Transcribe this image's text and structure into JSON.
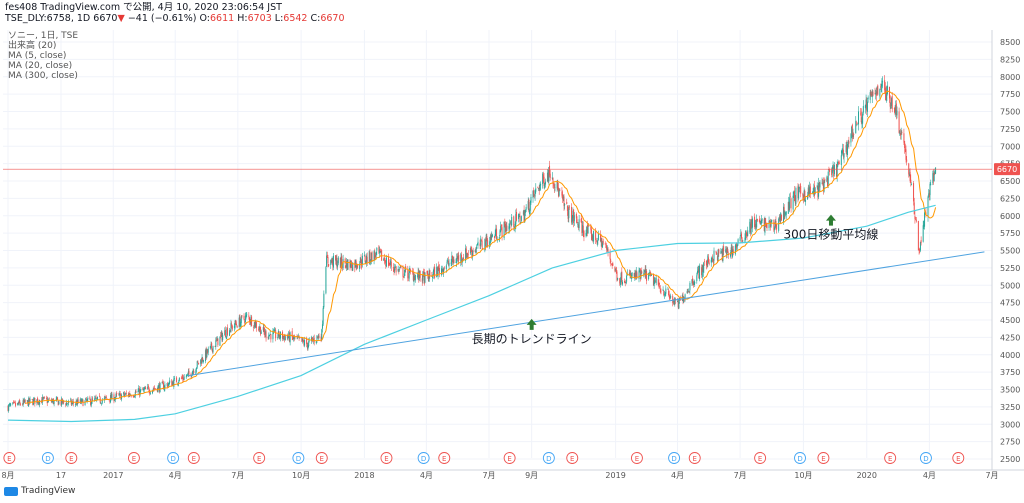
{
  "header": {
    "publish_line": "fes408 TradingView.com で公開, 4月 10, 2020 23:06:54 JST",
    "symbol": "TSE_DLY:6758, 1D",
    "last": "6670",
    "change": "−41 (−0.61%)",
    "o_label": "O:",
    "o": "6611",
    "h_label": "H:",
    "h": "6703",
    "l_label": "L:",
    "l": "6542",
    "c_label": "C:",
    "c": "6670"
  },
  "indicators": {
    "series_name": "ソニー, 1日, TSE",
    "volume": "出来高 (20)",
    "ma5": "MA (5, close)",
    "ma20": "MA (20, close)",
    "ma300": "MA (300, close)"
  },
  "logo": {
    "text": "TradingView"
  },
  "colors": {
    "up": "#26a69a",
    "down": "#ef5350",
    "ma20": "#ff9800",
    "ma300": "#4dd0e1",
    "trend": "#4fa3e0",
    "price_line": "#ef5350",
    "arrow": "#2e7d32",
    "earnings": "#ef5350",
    "dividend": "#42a5f5"
  },
  "chart_data": {
    "type": "line",
    "title": "",
    "y_ticks": [
      "8500",
      "8250",
      "8000",
      "7750",
      "7500",
      "7250",
      "7000",
      "6750",
      "6500",
      "6250",
      "6000",
      "5750",
      "5500",
      "5250",
      "5000",
      "4750",
      "4500",
      "4250",
      "4000",
      "3750",
      "3500",
      "3250",
      "3000",
      "2750",
      "2500"
    ],
    "ylim": [
      2500,
      8500
    ],
    "x_ticks": [
      "8月",
      "17",
      "2017",
      "4月",
      "7月",
      "10月",
      "2018",
      "4月",
      "7月",
      "9月",
      "2019",
      "4月",
      "7月",
      "10月",
      "2020",
      "4月",
      "7月"
    ],
    "grid": true,
    "current_price": "6670",
    "price_series": [
      {
        "date": "2016-08-01",
        "close": 3250
      },
      {
        "date": "2016-09-15",
        "close": 3350
      },
      {
        "date": "2016-11-01",
        "close": 3300
      },
      {
        "date": "2016-12-15",
        "close": 3350
      },
      {
        "date": "2017-02-01",
        "close": 3450
      },
      {
        "date": "2017-03-15",
        "close": 3550
      },
      {
        "date": "2017-04-20",
        "close": 3700
      },
      {
        "date": "2017-05-15",
        "close": 4000
      },
      {
        "date": "2017-06-15",
        "close": 4350
      },
      {
        "date": "2017-07-15",
        "close": 4550
      },
      {
        "date": "2017-08-10",
        "close": 4300
      },
      {
        "date": "2017-09-15",
        "close": 4250
      },
      {
        "date": "2017-10-10",
        "close": 4150
      },
      {
        "date": "2017-10-31",
        "close": 4300
      },
      {
        "date": "2017-11-05",
        "close": 5350
      },
      {
        "date": "2017-12-15",
        "close": 5300
      },
      {
        "date": "2018-01-20",
        "close": 5450
      },
      {
        "date": "2018-02-20",
        "close": 5200
      },
      {
        "date": "2018-04-01",
        "close": 5100
      },
      {
        "date": "2018-05-01",
        "close": 5300
      },
      {
        "date": "2018-06-15",
        "close": 5550
      },
      {
        "date": "2018-07-20",
        "close": 5800
      },
      {
        "date": "2018-08-20",
        "close": 6000
      },
      {
        "date": "2018-09-10",
        "close": 6400
      },
      {
        "date": "2018-09-28",
        "close": 6650
      },
      {
        "date": "2018-10-20",
        "close": 6100
      },
      {
        "date": "2018-11-15",
        "close": 5800
      },
      {
        "date": "2018-12-15",
        "close": 5600
      },
      {
        "date": "2019-01-05",
        "close": 5100
      },
      {
        "date": "2019-02-15",
        "close": 5150
      },
      {
        "date": "2019-03-15",
        "close": 4900
      },
      {
        "date": "2019-04-01",
        "close": 4700
      },
      {
        "date": "2019-04-25",
        "close": 5100
      },
      {
        "date": "2019-05-20",
        "close": 5400
      },
      {
        "date": "2019-06-20",
        "close": 5500
      },
      {
        "date": "2019-07-20",
        "close": 5900
      },
      {
        "date": "2019-08-20",
        "close": 5850
      },
      {
        "date": "2019-09-20",
        "close": 6300
      },
      {
        "date": "2019-10-20",
        "close": 6350
      },
      {
        "date": "2019-11-20",
        "close": 6700
      },
      {
        "date": "2019-12-15",
        "close": 7300
      },
      {
        "date": "2020-01-20",
        "close": 7900
      },
      {
        "date": "2020-02-10",
        "close": 7600
      },
      {
        "date": "2020-02-25",
        "close": 7000
      },
      {
        "date": "2020-03-10",
        "close": 6100
      },
      {
        "date": "2020-03-17",
        "close": 5500
      },
      {
        "date": "2020-03-31",
        "close": 6300
      },
      {
        "date": "2020-04-10",
        "close": 6670
      }
    ],
    "series": [
      {
        "name": "MA (20, close)",
        "ref": "ma20"
      },
      {
        "name": "MA (300, close)",
        "values": [
          {
            "date": "2016-08-01",
            "value": 3060
          },
          {
            "date": "2016-11-01",
            "value": 3040
          },
          {
            "date": "2017-02-01",
            "value": 3070
          },
          {
            "date": "2017-04-01",
            "value": 3150
          },
          {
            "date": "2017-07-01",
            "value": 3400
          },
          {
            "date": "2017-10-01",
            "value": 3700
          },
          {
            "date": "2018-01-01",
            "value": 4150
          },
          {
            "date": "2018-04-01",
            "value": 4500
          },
          {
            "date": "2018-07-01",
            "value": 4850
          },
          {
            "date": "2018-10-01",
            "value": 5250
          },
          {
            "date": "2019-01-01",
            "value": 5500
          },
          {
            "date": "2019-04-01",
            "value": 5600
          },
          {
            "date": "2019-07-01",
            "value": 5610
          },
          {
            "date": "2019-10-01",
            "value": 5680
          },
          {
            "date": "2020-01-01",
            "value": 5850
          },
          {
            "date": "2020-03-01",
            "value": 6050
          },
          {
            "date": "2020-04-10",
            "value": 6150
          }
        ]
      },
      {
        "name": "長期のトレンドライン",
        "values": [
          {
            "date": "2017-04-20",
            "value": 3700
          },
          {
            "date": "2020-06-20",
            "value": 5480
          }
        ]
      }
    ],
    "annotations": [
      {
        "text": "長期のトレンドライン",
        "date": "2018-09-01",
        "price": 4200
      },
      {
        "text": "300日移動平均線",
        "date": "2019-11-10",
        "price": 5700
      }
    ],
    "events": [
      {
        "date": "2016-08-03",
        "kind": "E"
      },
      {
        "date": "2016-09-28",
        "kind": "D"
      },
      {
        "date": "2016-11-01",
        "kind": "E"
      },
      {
        "date": "2017-01-31",
        "kind": "E"
      },
      {
        "date": "2017-03-29",
        "kind": "D"
      },
      {
        "date": "2017-04-28",
        "kind": "E"
      },
      {
        "date": "2017-08-01",
        "kind": "E"
      },
      {
        "date": "2017-09-27",
        "kind": "D"
      },
      {
        "date": "2017-10-31",
        "kind": "E"
      },
      {
        "date": "2018-02-02",
        "kind": "E"
      },
      {
        "date": "2018-03-28",
        "kind": "D"
      },
      {
        "date": "2018-04-27",
        "kind": "E"
      },
      {
        "date": "2018-07-31",
        "kind": "E"
      },
      {
        "date": "2018-09-26",
        "kind": "D"
      },
      {
        "date": "2018-10-30",
        "kind": "E"
      },
      {
        "date": "2019-02-01",
        "kind": "E"
      },
      {
        "date": "2019-03-27",
        "kind": "D"
      },
      {
        "date": "2019-04-26",
        "kind": "E"
      },
      {
        "date": "2019-07-30",
        "kind": "E"
      },
      {
        "date": "2019-09-26",
        "kind": "D"
      },
      {
        "date": "2019-10-30",
        "kind": "E"
      },
      {
        "date": "2020-02-04",
        "kind": "E"
      },
      {
        "date": "2020-03-27",
        "kind": "D"
      },
      {
        "date": "2020-05-13",
        "kind": "E"
      }
    ]
  }
}
